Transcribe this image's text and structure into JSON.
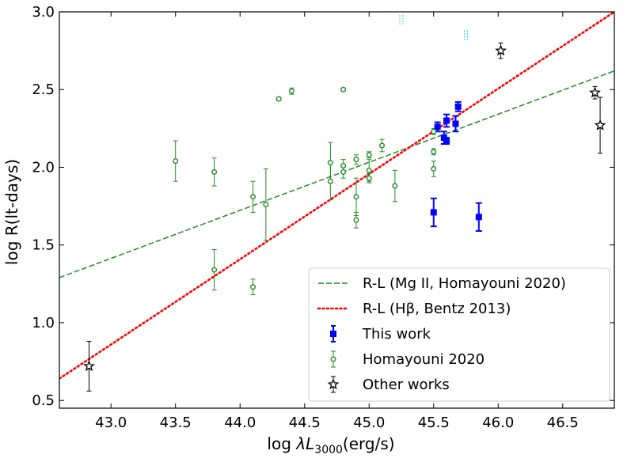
{
  "chart_data": {
    "type": "scatter",
    "xlabel": "log λL3000(erg/s)",
    "xlabel_parts": {
      "prefix": "log ",
      "lambda": "λ",
      "L": "L",
      "subscript": "3000",
      "suffix": "(erg/s)"
    },
    "ylabel": "log R(lt-days)",
    "xlim": [
      42.6,
      46.9
    ],
    "ylim": [
      0.45,
      3.0
    ],
    "xticks": [
      43.0,
      43.5,
      44.0,
      44.5,
      45.0,
      45.5,
      46.0,
      46.5
    ],
    "yticks": [
      0.5,
      1.0,
      1.5,
      2.0,
      2.5,
      3.0
    ],
    "xtick_labels": [
      "43.0",
      "43.5",
      "44.0",
      "44.5",
      "45.0",
      "45.5",
      "46.0",
      "46.5"
    ],
    "ytick_labels": [
      "0.5",
      "1.0",
      "1.5",
      "2.0",
      "2.5",
      "3.0"
    ],
    "grid": false,
    "legend_position": "lower-right",
    "colors": {
      "mgii_fit": "#228B22",
      "hbeta_fit": "#ff0000",
      "this_work": "#0000ff",
      "homayouni": "#228B22",
      "other": "#000000",
      "offscale_marks": "#00e5ee"
    },
    "lines": [
      {
        "name": "R-L (Mg II, Homayouni 2020)",
        "style": "dashed",
        "color": "#228B22",
        "x": [
          42.6,
          46.9
        ],
        "y": [
          1.29,
          2.62
        ]
      },
      {
        "name": "R-L (Hβ, Bentz 2013)",
        "style": "dotted",
        "color": "#ff0000",
        "x": [
          42.6,
          46.9
        ],
        "y": [
          0.64,
          3.0
        ]
      }
    ],
    "series": [
      {
        "name": "This work",
        "marker": "square",
        "color": "#0000ff",
        "points": [
          {
            "x": 45.5,
            "y": 1.71,
            "err": 0.09
          },
          {
            "x": 45.53,
            "y": 2.26,
            "err": 0.03
          },
          {
            "x": 45.58,
            "y": 2.19,
            "err": 0.04
          },
          {
            "x": 45.6,
            "y": 2.3,
            "err": 0.04
          },
          {
            "x": 45.6,
            "y": 2.17,
            "err": 0.02
          },
          {
            "x": 45.67,
            "y": 2.28,
            "err": 0.05
          },
          {
            "x": 45.69,
            "y": 2.39,
            "err": 0.03
          },
          {
            "x": 45.85,
            "y": 1.68,
            "err": 0.09
          }
        ]
      },
      {
        "name": "Homayouni 2020",
        "marker": "circle",
        "color": "#228B22",
        "points": [
          {
            "x": 43.5,
            "y": 2.04,
            "err": 0.13
          },
          {
            "x": 43.8,
            "y": 1.97,
            "err": 0.09
          },
          {
            "x": 43.8,
            "y": 1.34,
            "err": 0.13
          },
          {
            "x": 44.1,
            "y": 1.81,
            "err": 0.1
          },
          {
            "x": 44.1,
            "y": 1.23,
            "err": 0.05
          },
          {
            "x": 44.2,
            "y": 1.76,
            "err": 0.23
          },
          {
            "x": 44.3,
            "y": 2.44,
            "err": 0.01
          },
          {
            "x": 44.4,
            "y": 2.49,
            "err": 0.02
          },
          {
            "x": 44.7,
            "y": 2.03,
            "err": 0.13
          },
          {
            "x": 44.7,
            "y": 1.91,
            "err": 0.12
          },
          {
            "x": 44.8,
            "y": 2.5,
            "err": 0.01
          },
          {
            "x": 44.8,
            "y": 2.01,
            "err": 0.04
          },
          {
            "x": 44.8,
            "y": 1.97,
            "err": 0.04
          },
          {
            "x": 44.9,
            "y": 2.05,
            "err": 0.03
          },
          {
            "x": 44.9,
            "y": 1.81,
            "err": 0.12
          },
          {
            "x": 44.9,
            "y": 1.66,
            "err": 0.05
          },
          {
            "x": 45.0,
            "y": 2.08,
            "err": 0.02
          },
          {
            "x": 45.0,
            "y": 1.98,
            "err": 0.07
          },
          {
            "x": 45.0,
            "y": 1.93,
            "err": 0.03
          },
          {
            "x": 45.1,
            "y": 2.14,
            "err": 0.04
          },
          {
            "x": 45.2,
            "y": 1.88,
            "err": 0.1
          },
          {
            "x": 45.5,
            "y": 2.1,
            "err": 0.02
          },
          {
            "x": 45.5,
            "y": 1.99,
            "err": 0.05
          },
          {
            "x": 45.5,
            "y": 2.23,
            "err": 0.02
          }
        ]
      },
      {
        "name": "Other works",
        "marker": "star",
        "color": "#000000",
        "points": [
          {
            "x": 42.83,
            "y": 0.72,
            "err": 0.16
          },
          {
            "x": 46.02,
            "y": 2.75,
            "err": 0.05
          },
          {
            "x": 46.75,
            "y": 2.48,
            "err": 0.04
          },
          {
            "x": 46.79,
            "y": 2.27,
            "err": 0.18
          }
        ]
      }
    ],
    "offscale_marks": [
      {
        "x": 45.25,
        "y": 2.95
      },
      {
        "x": 45.75,
        "y": 2.85
      }
    ],
    "legend": [
      {
        "label": "R-L (Mg II, Homayouni 2020)",
        "kind": "dashed",
        "color": "#228B22"
      },
      {
        "label": "R-L (Hβ, Bentz 2013)",
        "kind": "dotted",
        "color": "#ff0000"
      },
      {
        "label": "This work",
        "kind": "square",
        "color": "#0000ff"
      },
      {
        "label": "Homayouni 2020",
        "kind": "circle",
        "color": "#228B22"
      },
      {
        "label": "Other works",
        "kind": "star",
        "color": "#000000"
      }
    ]
  }
}
